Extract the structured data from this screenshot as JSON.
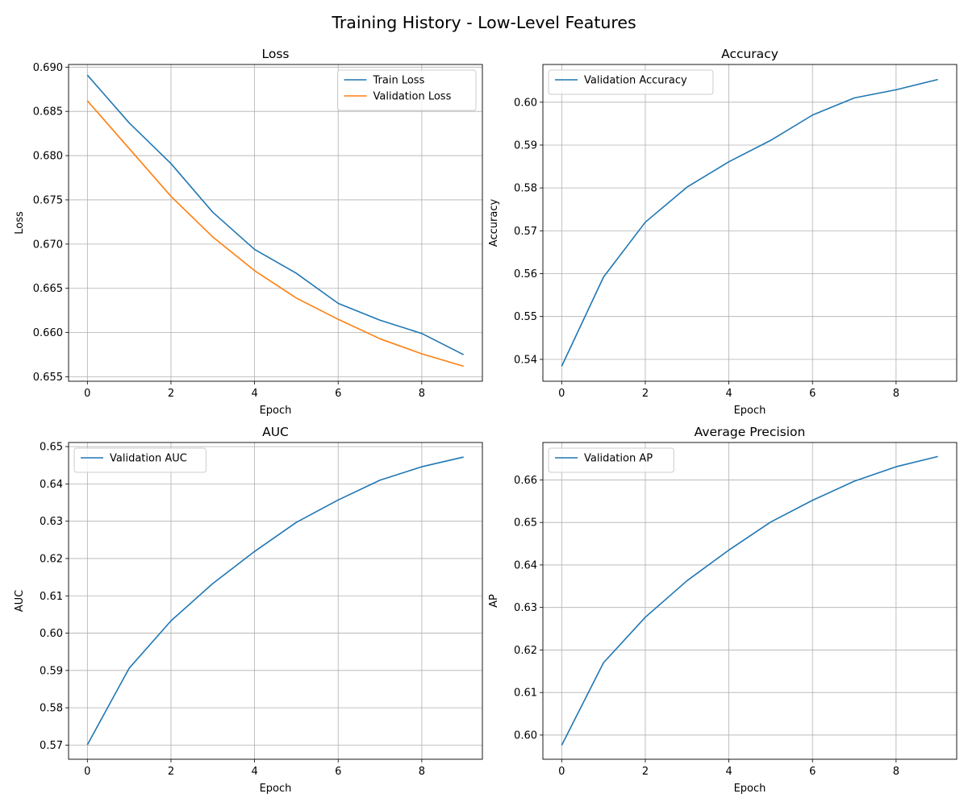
{
  "figure_title": "Training History - Low-Level Features",
  "colors": {
    "blue": "#1f77b4",
    "orange": "#ff7f0e",
    "grid": "#b0b0b0"
  },
  "chart_data": [
    {
      "type": "line",
      "title": "Loss",
      "xlabel": "Epoch",
      "ylabel": "Loss",
      "xlim": [
        -0.45,
        9.45
      ],
      "ylim": [
        0.6545,
        0.6903
      ],
      "xticks": [
        0,
        2,
        4,
        6,
        8
      ],
      "xtick_labels": [
        "0",
        "2",
        "4",
        "6",
        "8"
      ],
      "yticks": [
        0.655,
        0.66,
        0.665,
        0.67,
        0.675,
        0.68,
        0.685,
        0.69
      ],
      "ytick_labels": [
        "0.655",
        "0.660",
        "0.665",
        "0.670",
        "0.675",
        "0.680",
        "0.685",
        "0.690"
      ],
      "grid": true,
      "legend_position": "upper right",
      "x": [
        0,
        1,
        2,
        3,
        4,
        5,
        6,
        7,
        8,
        9
      ],
      "series": [
        {
          "name": "Train Loss",
          "color": "#1f77b4",
          "values": [
            0.6891,
            0.6837,
            0.6791,
            0.6736,
            0.6694,
            0.6667,
            0.6633,
            0.6614,
            0.6599,
            0.6575
          ]
        },
        {
          "name": "Validation Loss",
          "color": "#ff7f0e",
          "values": [
            0.6862,
            0.6808,
            0.6754,
            0.6708,
            0.667,
            0.6639,
            0.6615,
            0.6593,
            0.6576,
            0.6562
          ]
        }
      ]
    },
    {
      "type": "line",
      "title": "Accuracy",
      "xlabel": "Epoch",
      "ylabel": "Accuracy",
      "xlim": [
        -0.45,
        9.45
      ],
      "ylim": [
        0.5349,
        0.6088
      ],
      "xticks": [
        0,
        2,
        4,
        6,
        8
      ],
      "xtick_labels": [
        "0",
        "2",
        "4",
        "6",
        "8"
      ],
      "yticks": [
        0.54,
        0.55,
        0.56,
        0.57,
        0.58,
        0.59,
        0.6
      ],
      "ytick_labels": [
        "0.54",
        "0.55",
        "0.56",
        "0.57",
        "0.58",
        "0.59",
        "0.60"
      ],
      "grid": true,
      "legend_position": "upper left",
      "x": [
        0,
        1,
        2,
        3,
        4,
        5,
        6,
        7,
        8,
        9
      ],
      "series": [
        {
          "name": "Validation Accuracy",
          "color": "#1f77b4",
          "values": [
            0.5384,
            0.5592,
            0.572,
            0.5802,
            0.5861,
            0.5911,
            0.597,
            0.601,
            0.6029,
            0.6053
          ]
        }
      ]
    },
    {
      "type": "line",
      "title": "AUC",
      "xlabel": "Epoch",
      "ylabel": "AUC",
      "xlim": [
        -0.45,
        9.45
      ],
      "ylim": [
        0.5662,
        0.6511
      ],
      "xticks": [
        0,
        2,
        4,
        6,
        8
      ],
      "xtick_labels": [
        "0",
        "2",
        "4",
        "6",
        "8"
      ],
      "yticks": [
        0.57,
        0.58,
        0.59,
        0.6,
        0.61,
        0.62,
        0.63,
        0.64,
        0.65
      ],
      "ytick_labels": [
        "0.57",
        "0.58",
        "0.59",
        "0.60",
        "0.61",
        "0.62",
        "0.63",
        "0.64",
        "0.65"
      ],
      "grid": true,
      "legend_position": "upper left",
      "x": [
        0,
        1,
        2,
        3,
        4,
        5,
        6,
        7,
        8,
        9
      ],
      "series": [
        {
          "name": "Validation AUC",
          "color": "#1f77b4",
          "values": [
            0.5701,
            0.5906,
            0.6033,
            0.6133,
            0.6219,
            0.6297,
            0.6357,
            0.641,
            0.6446,
            0.6472
          ]
        }
      ]
    },
    {
      "type": "line",
      "title": "Average Precision",
      "xlabel": "Epoch",
      "ylabel": "AP",
      "xlim": [
        -0.45,
        9.45
      ],
      "ylim": [
        0.5943,
        0.6688
      ],
      "xticks": [
        0,
        2,
        4,
        6,
        8
      ],
      "xtick_labels": [
        "0",
        "2",
        "4",
        "6",
        "8"
      ],
      "yticks": [
        0.6,
        0.61,
        0.62,
        0.63,
        0.64,
        0.65,
        0.66
      ],
      "ytick_labels": [
        "0.60",
        "0.61",
        "0.62",
        "0.63",
        "0.64",
        "0.65",
        "0.66"
      ],
      "grid": true,
      "legend_position": "upper left",
      "x": [
        0,
        1,
        2,
        3,
        4,
        5,
        6,
        7,
        8,
        9
      ],
      "series": [
        {
          "name": "Validation AP",
          "color": "#1f77b4",
          "values": [
            0.5976,
            0.617,
            0.6277,
            0.6363,
            0.6435,
            0.6501,
            0.6552,
            0.6597,
            0.6631,
            0.6655
          ]
        }
      ]
    }
  ]
}
